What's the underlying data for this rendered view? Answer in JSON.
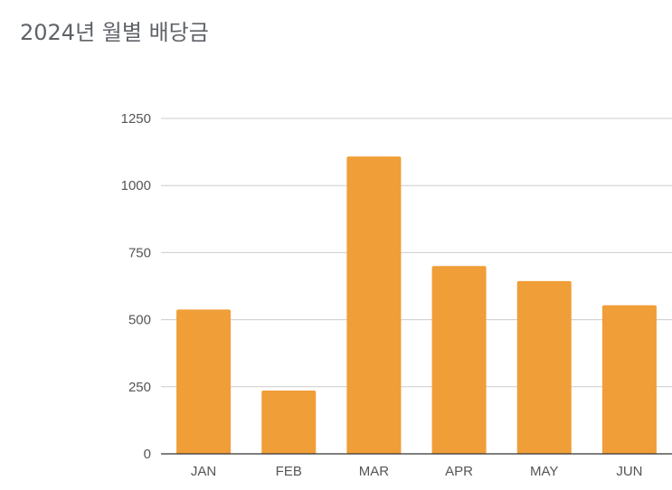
{
  "chart_data": {
    "type": "bar",
    "title": "2024년 월별 배당금",
    "xlabel": "",
    "ylabel": "",
    "categories": [
      "JAN",
      "FEB",
      "MAR",
      "APR",
      "MAY",
      "JUN"
    ],
    "values": [
      538,
      236,
      1108,
      700,
      644,
      554
    ],
    "ylim": [
      0,
      1250
    ],
    "yticks": [
      0,
      250,
      500,
      750,
      1000,
      1250
    ],
    "ytick_labels": [
      "0",
      "250",
      "500",
      "750",
      "1000",
      "1250"
    ],
    "grid": true,
    "legend": "none",
    "colors": {
      "bar": "#f09e38",
      "grid": "#cccccc",
      "baseline": "#333333",
      "title": "#5f6368",
      "tick": "#555555"
    }
  }
}
